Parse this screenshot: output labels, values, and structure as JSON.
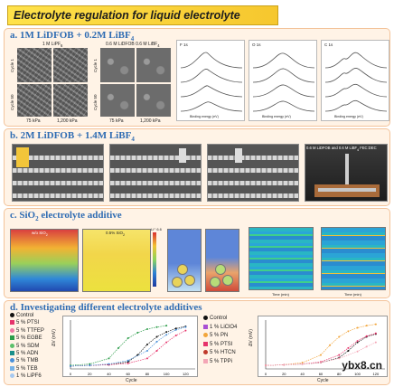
{
  "title": "Electrolyte regulation for liquid electrolyte",
  "panel_a": {
    "heading": "a. 1M LiDFOB + 0.2M LiBF",
    "heading_sub": "4",
    "col1": "1 M LiPF",
    "col1_sub": "6",
    "col2": "0.6 M LiDFOB 0.6 M LiBF",
    "col2_sub": "4",
    "row1": "Cycle 1",
    "row2": "Cycle 50",
    "row1b": "Cycle 1",
    "row2b": "Cycle 50",
    "pressure_left_1": "75 kPa",
    "pressure_left_2": "1,200 kPa",
    "pressure_right_1": "75 kPa",
    "pressure_right_2": "1,200 kPa",
    "xps_titles": [
      "F 1s",
      "O 1s",
      "C 1s"
    ],
    "xps_xlabel": "Binding energy (eV)"
  },
  "panel_b": {
    "heading": "b. 2M LiDFOB + 1.4M LiBF",
    "heading_sub": "4",
    "photo_caption": "0.6 M LiDFOB and 0.6 M LiBF",
    "photo_caption_sub": "4",
    "photo_caption_tail": " FEC:DEC"
  },
  "panel_c": {
    "heading": "c. SiO",
    "heading_sub": "2",
    "heading_tail": " electrolyte additive",
    "map1_label": "w/o SiO",
    "map1_sub": "2",
    "map2_label": "0.5% SiO",
    "map2_sub": "2",
    "colorbar_top": "Li⁺ 6.6",
    "heat1_xlabel": "Time (min)",
    "heat2_xlabel": "Time (min)"
  },
  "panel_d": {
    "heading": "d. Investigating different electrolyte additives",
    "legend_left": [
      "Control",
      "5 % PTSI",
      "5 % TTFEP",
      "5 % EGBE",
      "5 % SDM",
      "5 % ADN",
      "5 % TMB",
      "5 % TEB",
      "1 % LiPF6"
    ],
    "legend_left_colors": [
      "#111111",
      "#e6336b",
      "#f07aa6",
      "#2c9d4a",
      "#5cc06b",
      "#1b8f8a",
      "#4a90d9",
      "#76b2e8",
      "#a7c9f0"
    ],
    "legend_right": [
      "Control",
      "1 % LiClO4",
      "5 % PN",
      "5 % PTSI",
      "5 % HTCN",
      "5 % TPPi"
    ],
    "legend_right_colors": [
      "#111111",
      "#a94fd3",
      "#f2a53a",
      "#e6336b",
      "#c0392b",
      "#f4a6b6"
    ],
    "chart_xlabel": "Cycle",
    "chart_ylabel": "ΔV (mV)"
  },
  "chart_data": [
    {
      "type": "scatter",
      "title": "",
      "xlabel": "Cycle",
      "ylabel": "ΔV (mV)",
      "xlim": [
        0,
        130
      ],
      "xticks": [
        0,
        20,
        40,
        60,
        80,
        100,
        120
      ],
      "series": [
        {
          "name": "Control",
          "color": "#111111",
          "x": [
            0,
            20,
            40,
            60,
            70,
            80,
            90,
            100,
            110,
            120
          ],
          "y": [
            0.4,
            0.5,
            0.6,
            1.0,
            2.0,
            3.5,
            4.6,
            5.3,
            5.8,
            6.1
          ]
        },
        {
          "name": "5 % PTSI",
          "color": "#e6336b",
          "x": [
            0,
            20,
            40,
            60,
            80,
            90,
            100,
            110,
            120
          ],
          "y": [
            0.4,
            0.5,
            0.6,
            0.8,
            1.5,
            2.6,
            3.8,
            4.8,
            5.5
          ]
        },
        {
          "name": "5 % EGBE",
          "color": "#2c9d4a",
          "x": [
            0,
            20,
            40,
            50,
            60,
            70,
            80,
            90,
            100
          ],
          "y": [
            0.5,
            0.7,
            1.5,
            3.0,
            4.4,
            5.2,
            5.7,
            6.0,
            6.2
          ]
        },
        {
          "name": "5 % TMB",
          "color": "#4a90d9",
          "x": [
            0,
            20,
            40,
            60,
            80,
            90,
            100,
            110,
            120
          ],
          "y": [
            0.4,
            0.5,
            0.7,
            1.2,
            2.6,
            3.9,
            4.9,
            5.6,
            6.0
          ]
        }
      ]
    },
    {
      "type": "scatter",
      "title": "",
      "xlabel": "Cycle",
      "ylabel": "ΔV (mV)",
      "xlim": [
        0,
        130
      ],
      "xticks": [
        0,
        20,
        40,
        60,
        80,
        100,
        120
      ],
      "series": [
        {
          "name": "Control",
          "color": "#111111",
          "x": [
            0,
            20,
            40,
            60,
            80,
            90,
            100,
            110,
            120
          ],
          "y": [
            0.5,
            0.6,
            0.7,
            0.9,
            1.6,
            2.6,
            3.8,
            4.6,
            5.0
          ]
        },
        {
          "name": "5 % PN",
          "color": "#f2a53a",
          "x": [
            0,
            20,
            40,
            60,
            70,
            80,
            90,
            100,
            110,
            120
          ],
          "y": [
            0.5,
            0.6,
            0.9,
            2.0,
            3.4,
            4.6,
            5.4,
            5.9,
            6.2,
            6.4
          ]
        },
        {
          "name": "5 % PTSI",
          "color": "#e6336b",
          "x": [
            0,
            20,
            40,
            60,
            80,
            90,
            100,
            110,
            120
          ],
          "y": [
            0.5,
            0.6,
            0.7,
            1.0,
            2.0,
            3.0,
            4.0,
            4.7,
            5.1
          ]
        },
        {
          "name": "5 % TPPi",
          "color": "#f4a6b6",
          "x": [
            0,
            20,
            40,
            60,
            80,
            100,
            110,
            120
          ],
          "y": [
            0.5,
            0.6,
            0.7,
            0.9,
            1.5,
            2.5,
            3.2,
            3.8
          ]
        }
      ]
    }
  ]
}
